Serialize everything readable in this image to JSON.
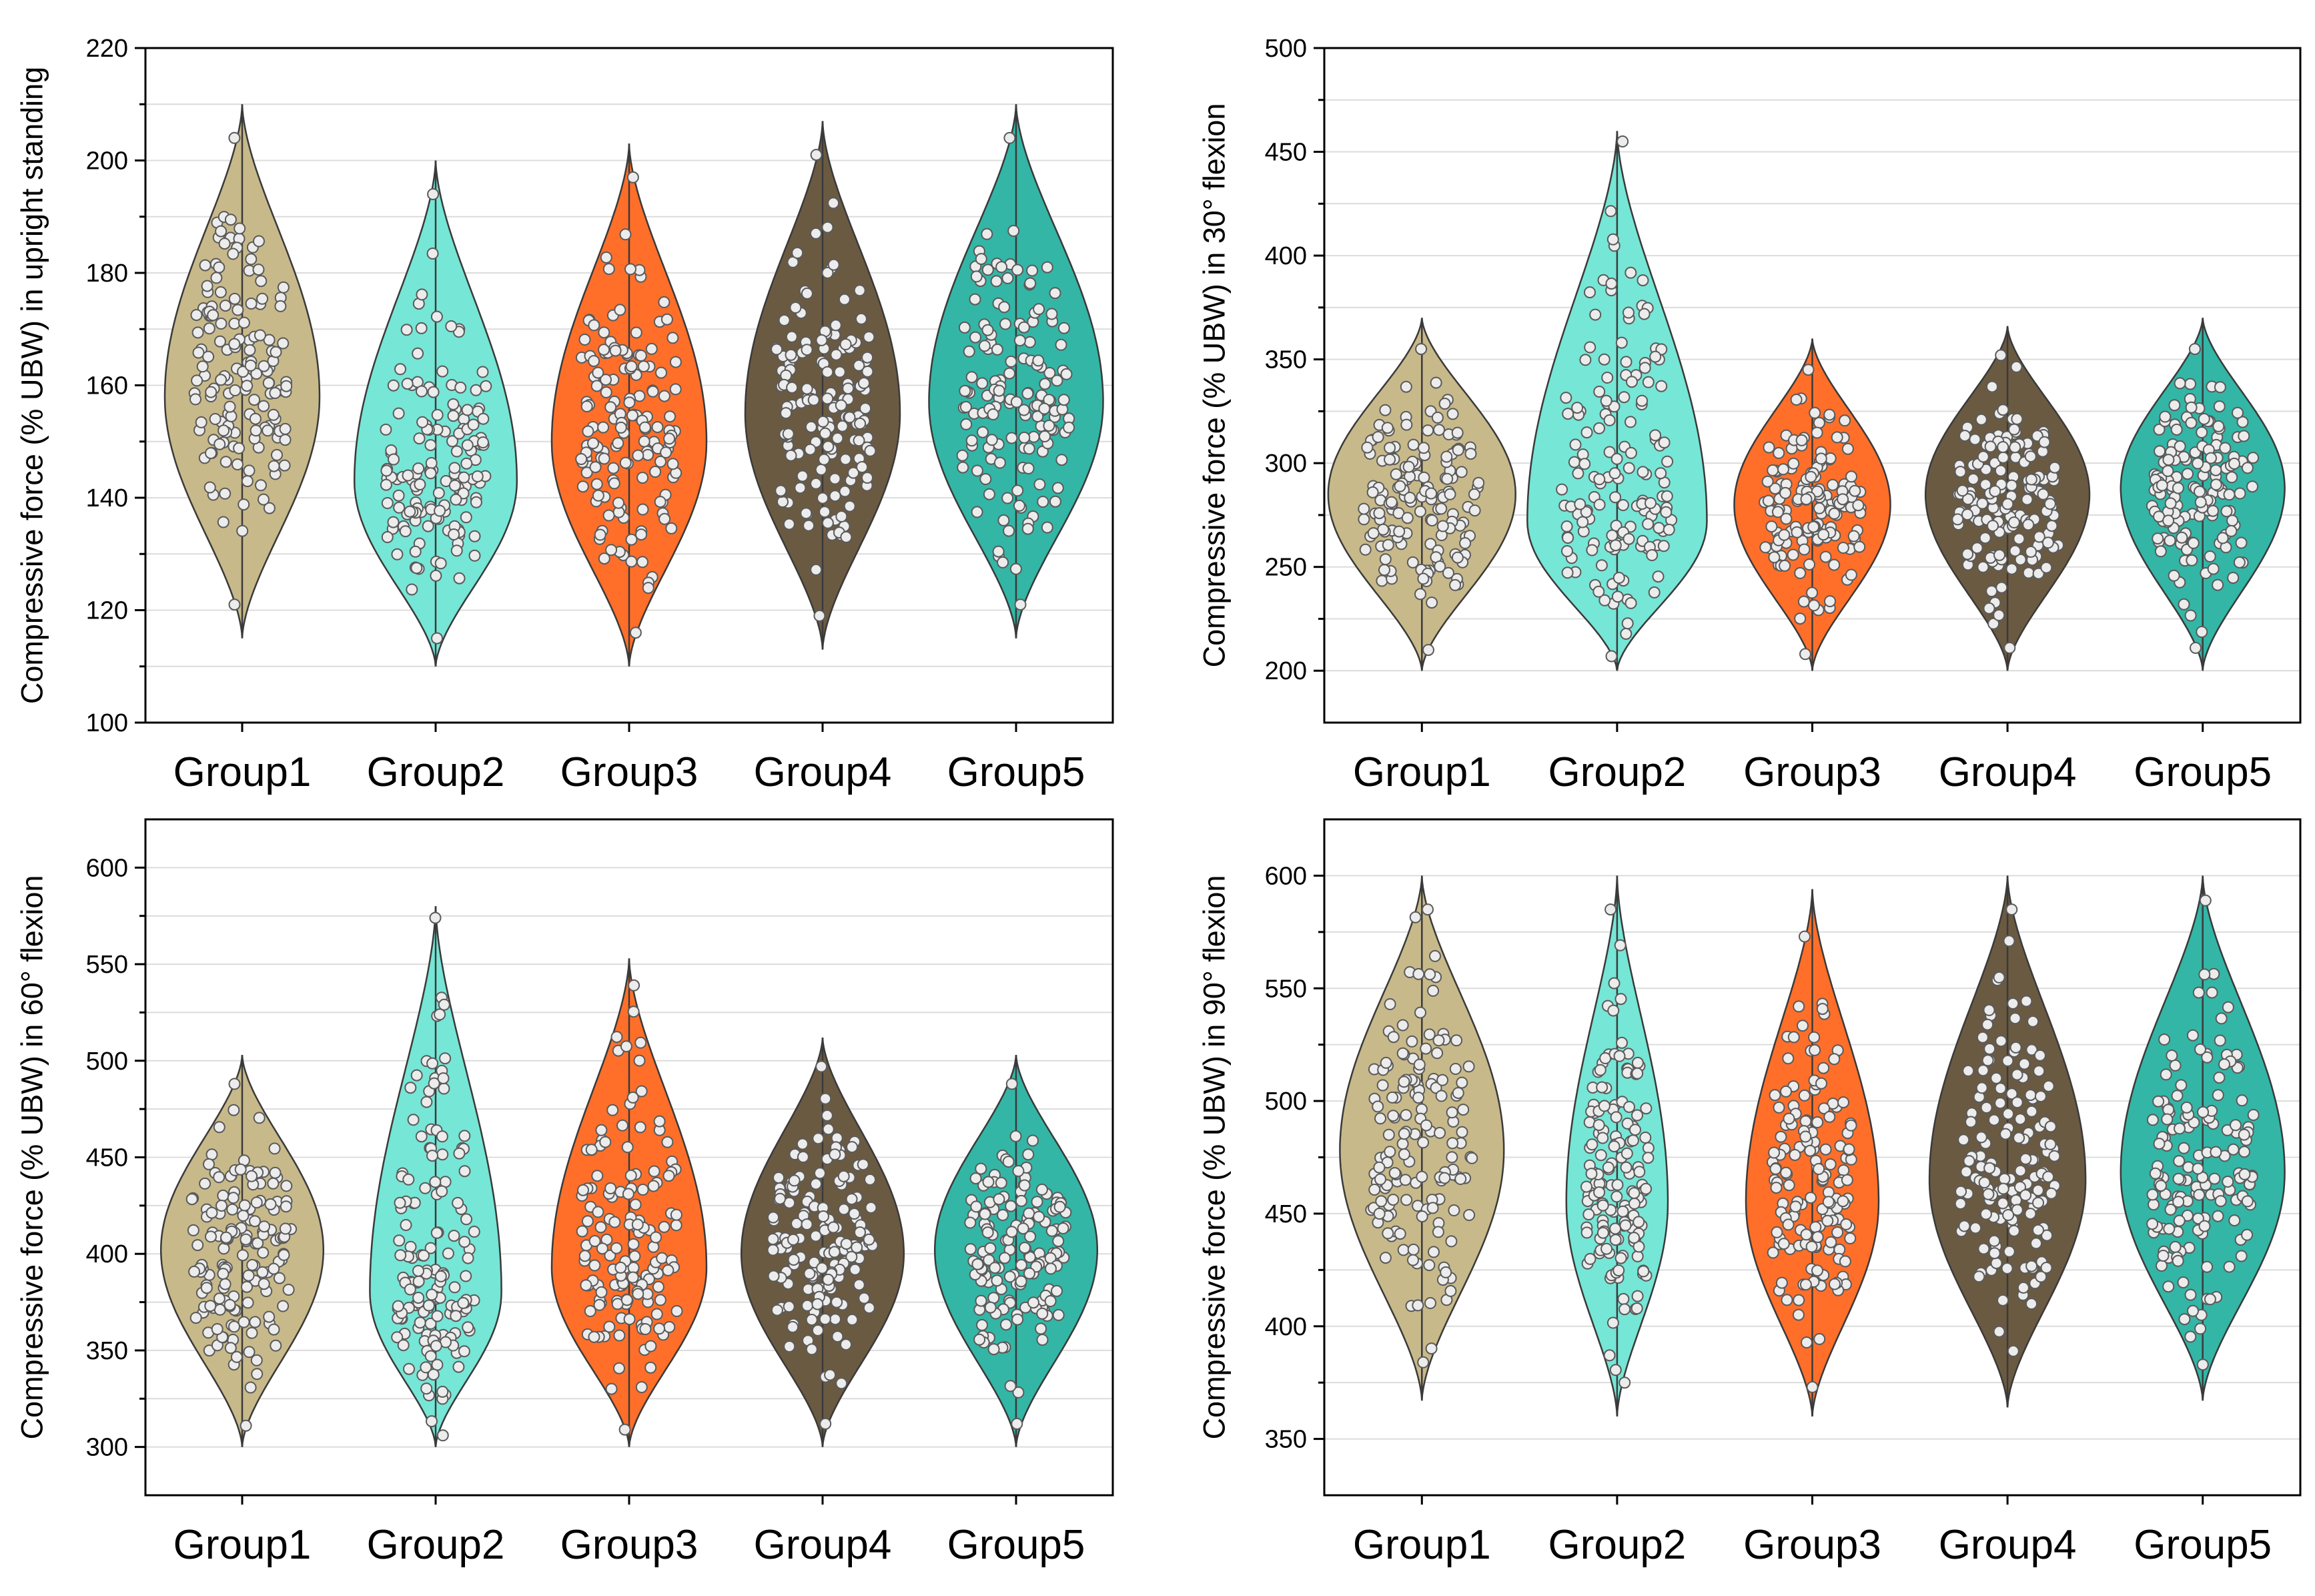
{
  "chart_data": [
    {
      "type": "violin",
      "title": "",
      "xlabel": "",
      "ylabel": "Compressive force (% UBW) in upright standing",
      "ylim": [
        100,
        220
      ],
      "yticks": [
        100,
        120,
        140,
        160,
        180,
        200,
        220
      ],
      "grid": true,
      "categories": [
        "Group1",
        "Group2",
        "Group3",
        "Group4",
        "Group5"
      ],
      "series": [
        {
          "name": "Group1",
          "color": "#c8b98a",
          "min": 115,
          "max": 210,
          "mode": 158,
          "max_width": 0.4,
          "pts_low": 121,
          "pts_high": 204
        },
        {
          "name": "Group2",
          "color": "#76e6d6",
          "min": 110,
          "max": 200,
          "mode": 143,
          "max_width": 0.42,
          "pts_low": 115,
          "pts_high": 194
        },
        {
          "name": "Group3",
          "color": "#ff6f2a",
          "min": 110,
          "max": 203,
          "mode": 150,
          "max_width": 0.4,
          "pts_low": 116,
          "pts_high": 197
        },
        {
          "name": "Group4",
          "color": "#6b5a42",
          "min": 113,
          "max": 207,
          "mode": 155,
          "max_width": 0.4,
          "pts_low": 119,
          "pts_high": 201
        },
        {
          "name": "Group5",
          "color": "#33b6a6",
          "min": 115,
          "max": 210,
          "mode": 157,
          "max_width": 0.45,
          "pts_low": 121,
          "pts_high": 204
        }
      ]
    },
    {
      "type": "violin",
      "title": "",
      "xlabel": "",
      "ylabel": "Compressive force (% UBW) in 30° flexion",
      "ylim": [
        175,
        500
      ],
      "yticks": [
        200,
        250,
        300,
        350,
        400,
        450,
        500
      ],
      "grid": true,
      "categories": [
        "Group1",
        "Group2",
        "Group3",
        "Group4",
        "Group5"
      ],
      "series": [
        {
          "name": "Group1",
          "color": "#c8b98a",
          "min": 200,
          "max": 370,
          "mode": 285,
          "max_width": 0.48,
          "pts_low": 210,
          "pts_high": 355
        },
        {
          "name": "Group2",
          "color": "#76e6d6",
          "min": 200,
          "max": 460,
          "mode": 272,
          "max_width": 0.46,
          "pts_low": 207,
          "pts_high": 455
        },
        {
          "name": "Group3",
          "color": "#ff6f2a",
          "min": 200,
          "max": 360,
          "mode": 280,
          "max_width": 0.4,
          "pts_low": 208,
          "pts_high": 345
        },
        {
          "name": "Group4",
          "color": "#6b5a42",
          "min": 200,
          "max": 366,
          "mode": 285,
          "max_width": 0.42,
          "pts_low": 211,
          "pts_high": 352
        },
        {
          "name": "Group5",
          "color": "#33b6a6",
          "min": 200,
          "max": 370,
          "mode": 288,
          "max_width": 0.42,
          "pts_low": 211,
          "pts_high": 355
        }
      ]
    },
    {
      "type": "violin",
      "title": "",
      "xlabel": "",
      "ylabel": "Compressive force (% UBW) in 60° flexion",
      "ylim": [
        275,
        625
      ],
      "yticks": [
        300,
        350,
        400,
        450,
        500,
        550,
        600
      ],
      "grid": true,
      "categories": [
        "Group1",
        "Group2",
        "Group3",
        "Group4",
        "Group5"
      ],
      "series": [
        {
          "name": "Group1",
          "color": "#c8b98a",
          "min": 300,
          "max": 503,
          "mode": 402,
          "max_width": 0.42,
          "pts_low": 311,
          "pts_high": 488
        },
        {
          "name": "Group2",
          "color": "#76e6d6",
          "min": 300,
          "max": 580,
          "mode": 380,
          "max_width": 0.34,
          "pts_low": 306,
          "pts_high": 574
        },
        {
          "name": "Group3",
          "color": "#ff6f2a",
          "min": 300,
          "max": 553,
          "mode": 393,
          "max_width": 0.4,
          "pts_low": 309,
          "pts_high": 539
        },
        {
          "name": "Group4",
          "color": "#6b5a42",
          "min": 300,
          "max": 512,
          "mode": 400,
          "max_width": 0.42,
          "pts_low": 312,
          "pts_high": 497
        },
        {
          "name": "Group5",
          "color": "#33b6a6",
          "min": 300,
          "max": 503,
          "mode": 402,
          "max_width": 0.42,
          "pts_low": 312,
          "pts_high": 488
        }
      ]
    },
    {
      "type": "violin",
      "title": "",
      "xlabel": "",
      "ylabel": "Compressive force (% UBW) in 90° flexion",
      "ylim": [
        325,
        625
      ],
      "yticks": [
        350,
        400,
        450,
        500,
        550,
        600
      ],
      "grid": true,
      "categories": [
        "Group1",
        "Group2",
        "Group3",
        "Group4",
        "Group5"
      ],
      "series": [
        {
          "name": "Group1",
          "color": "#c8b98a",
          "min": 367,
          "max": 600,
          "mode": 478,
          "max_width": 0.42,
          "pts_low": 384,
          "pts_high": 585
        },
        {
          "name": "Group2",
          "color": "#76e6d6",
          "min": 360,
          "max": 600,
          "mode": 455,
          "max_width": 0.26,
          "pts_low": 375,
          "pts_high": 585
        },
        {
          "name": "Group3",
          "color": "#ff6f2a",
          "min": 360,
          "max": 594,
          "mode": 455,
          "max_width": 0.34,
          "pts_low": 373,
          "pts_high": 573
        },
        {
          "name": "Group4",
          "color": "#6b5a42",
          "min": 364,
          "max": 600,
          "mode": 465,
          "max_width": 0.4,
          "pts_low": 389,
          "pts_high": 585
        },
        {
          "name": "Group5",
          "color": "#33b6a6",
          "min": 367,
          "max": 600,
          "mode": 468,
          "max_width": 0.42,
          "pts_low": 383,
          "pts_high": 589
        }
      ]
    }
  ]
}
